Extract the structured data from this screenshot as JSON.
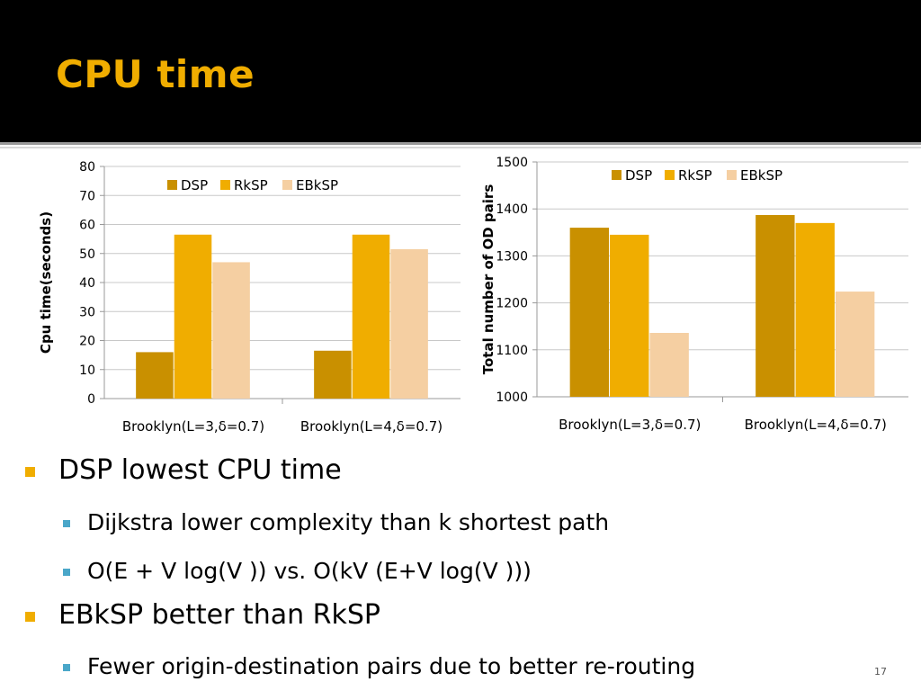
{
  "slide": {
    "title": "CPU time",
    "page_number": "17"
  },
  "colors": {
    "header_bg": "#000000",
    "title": "#f0ad00",
    "DSP": "#c99000",
    "RkSP": "#f0ad00",
    "EBkSP": "#f5cfa2",
    "bullet_l1": "#f0ad00",
    "bullet_l2": "#4aa7c9"
  },
  "bullets": [
    {
      "level": 1,
      "text": "DSP lowest CPU time"
    },
    {
      "level": 2,
      "text": "Dijkstra lower complexity than k shortest path"
    },
    {
      "level": 2,
      "text": "O(E + V log(V ))  vs. O(kV (E+V log(V )))"
    },
    {
      "level": 1,
      "text": "EBkSP better than RkSP"
    },
    {
      "level": 2,
      "text": "Fewer origin-destination pairs due to better re-routing"
    }
  ],
  "chart_data": [
    {
      "type": "bar",
      "categories": [
        "Brooklyn(L=3,δ=0.7)",
        "Brooklyn(L=4,δ=0.7)"
      ],
      "series": [
        {
          "name": "DSP",
          "values": [
            16,
            16.5
          ]
        },
        {
          "name": "RkSP",
          "values": [
            56.5,
            56.5
          ]
        },
        {
          "name": "EBkSP",
          "values": [
            47,
            51.5
          ]
        }
      ],
      "title": "",
      "xlabel": "",
      "ylabel": "Cpu time(seconds)",
      "ylim": [
        0,
        80
      ],
      "yticks": [
        0,
        10,
        20,
        30,
        40,
        50,
        60,
        70,
        80
      ],
      "grid": true,
      "legend": "top"
    },
    {
      "type": "bar",
      "categories": [
        "Brooklyn(L=3,δ=0.7)",
        "Brooklyn(L=4,δ=0.7)"
      ],
      "series": [
        {
          "name": "DSP",
          "values": [
            1360,
            1387
          ]
        },
        {
          "name": "RkSP",
          "values": [
            1345,
            1370
          ]
        },
        {
          "name": "EBkSP",
          "values": [
            1136,
            1224
          ]
        }
      ],
      "title": "",
      "xlabel": "",
      "ylabel": "Total number of OD pairs",
      "ylim": [
        1000,
        1500
      ],
      "yticks": [
        1000,
        1100,
        1200,
        1300,
        1400,
        1500
      ],
      "grid": true,
      "legend": "top"
    }
  ]
}
